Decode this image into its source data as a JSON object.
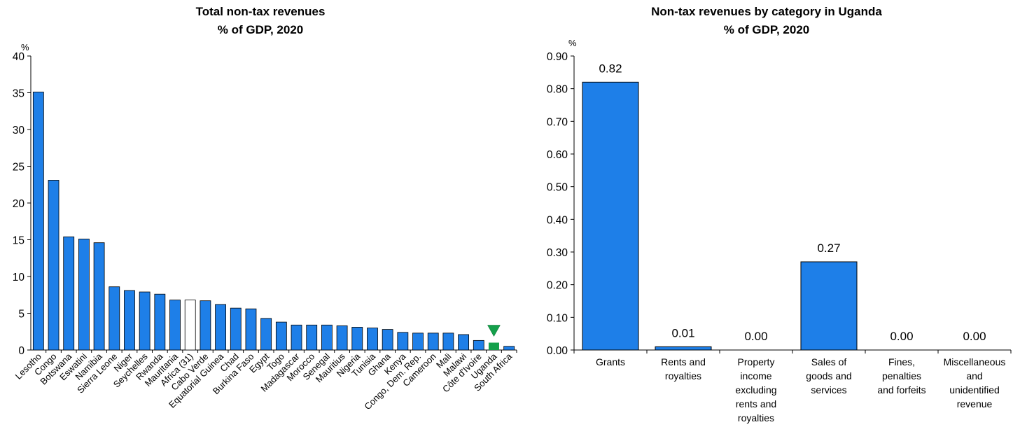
{
  "colors": {
    "bar_fill": "#1E7FE8",
    "bar_stroke": "#000000",
    "highlight_white": "#FFFFFF",
    "highlight_green": "#14A04B",
    "axis": "#000000"
  },
  "chart_data": [
    {
      "type": "bar",
      "title": "Total non-tax revenues",
      "subtitle": "% of GDP, 2020",
      "unit_label": "%",
      "ylim": [
        0,
        40
      ],
      "yticks": [
        0,
        5,
        10,
        15,
        20,
        25,
        30,
        35,
        40
      ],
      "grid": false,
      "categories": [
        "Lesotho",
        "Congo",
        "Botswana",
        "Eswatini",
        "Namibia",
        "Sierra Leone",
        "Niger",
        "Seychelles",
        "Rwanda",
        "Mauritania",
        "Africa (31)",
        "Cabo Verde",
        "Equatorial Guinea",
        "Chad",
        "Burkina Faso",
        "Egypt",
        "Togo",
        "Madagascar",
        "Morocco",
        "Senegal",
        "Mauritius",
        "Nigeria",
        "Tunisia",
        "Ghana",
        "Kenya",
        "Congo, Dem. Rep.",
        "Cameroon",
        "Mali",
        "Malawi",
        "Côte d'Ivoire",
        "Uganda",
        "South Africa"
      ],
      "values": [
        35.1,
        23.1,
        15.4,
        15.1,
        14.6,
        8.6,
        8.1,
        7.9,
        7.6,
        6.8,
        6.8,
        6.7,
        6.2,
        5.7,
        5.6,
        4.3,
        3.8,
        3.4,
        3.4,
        3.4,
        3.3,
        3.1,
        3.0,
        2.8,
        2.4,
        2.3,
        2.3,
        2.3,
        2.1,
        1.3,
        1.0,
        0.5
      ],
      "highlights": {
        "Africa (31)": "white",
        "Uganda": "green-with-marker"
      }
    },
    {
      "type": "bar",
      "title": "Non-tax revenues by category in Uganda",
      "subtitle": "% of GDP, 2020",
      "unit_label": "%",
      "ylim": [
        0,
        0.9
      ],
      "yticks": [
        "0.00",
        "0.10",
        "0.20",
        "0.30",
        "0.40",
        "0.50",
        "0.60",
        "0.70",
        "0.80",
        "0.90"
      ],
      "grid": false,
      "categories": [
        [
          "Grants"
        ],
        [
          "Rents and",
          "royalties"
        ],
        [
          "Property",
          "income",
          "excluding",
          "rents and",
          "royalties"
        ],
        [
          "Sales of",
          "goods and",
          "services"
        ],
        [
          "Fines,",
          "penalties",
          "and forfeits"
        ],
        [
          "Miscellaneous",
          "and",
          "unidentified",
          "revenue"
        ]
      ],
      "values": [
        0.82,
        0.01,
        0.0,
        0.27,
        0.0,
        0.0
      ],
      "data_labels": [
        "0.82",
        "0.01",
        "0.00",
        "0.27",
        "0.00",
        "0.00"
      ]
    }
  ]
}
